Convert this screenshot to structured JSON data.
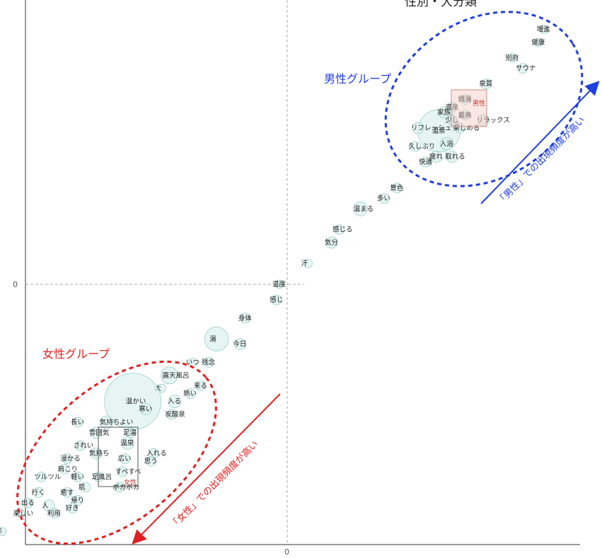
{
  "chart_data": {
    "type": "scatter",
    "title": "性別・大分類",
    "xlabel": "",
    "ylabel": "",
    "x_zero_label": "0",
    "y_zero_label": "0",
    "groups": {
      "male": {
        "label": "男性グループ",
        "color": "#1f3fe0",
        "arrow_label": "「男性」での出現頻度が高い"
      },
      "female": {
        "label": "女性グループ",
        "color": "#e02020",
        "arrow_label": "「女性」での出現頻度が高い"
      }
    },
    "categories_boxes": {
      "male": "男性",
      "female": "女性"
    },
    "points": [
      {
        "label": "増進",
        "x": 0.98,
        "y": 0.98,
        "size": 6
      },
      {
        "label": "健康",
        "x": 0.96,
        "y": 0.93,
        "size": 6
      },
      {
        "label": "別府",
        "x": 0.86,
        "y": 0.87,
        "size": 6
      },
      {
        "label": "サウナ",
        "x": 0.9,
        "y": 0.83,
        "size": 7
      },
      {
        "label": "泉質",
        "x": 0.76,
        "y": 0.77,
        "size": 7
      },
      {
        "label": "銭湯",
        "x": 0.68,
        "y": 0.71,
        "size": 7
      },
      {
        "label": "最高",
        "x": 0.68,
        "y": 0.65,
        "size": 7
      },
      {
        "label": "温泉",
        "x": 0.58,
        "y": 0.59,
        "size": 30
      },
      {
        "label": "家族",
        "x": 0.6,
        "y": 0.66,
        "size": 8
      },
      {
        "label": "リラックス",
        "x": 0.75,
        "y": 0.63,
        "size": 8
      },
      {
        "label": "楽しめる",
        "x": 0.66,
        "y": 0.6,
        "size": 7
      },
      {
        "label": "リフレッシュ",
        "x": 0.5,
        "y": 0.6,
        "size": 8
      },
      {
        "label": "久しぶり",
        "x": 0.49,
        "y": 0.53,
        "size": 7
      },
      {
        "label": "入浴",
        "x": 0.61,
        "y": 0.54,
        "size": 9
      },
      {
        "label": "快適",
        "x": 0.53,
        "y": 0.47,
        "size": 7
      },
      {
        "label": "疲れ",
        "x": 0.57,
        "y": 0.49,
        "size": 8
      },
      {
        "label": "取れる",
        "x": 0.63,
        "y": 0.49,
        "size": 8
      },
      {
        "label": "少し",
        "x": 0.63,
        "y": 0.63,
        "size": 7
      },
      {
        "label": "温泉",
        "x": 0.63,
        "y": 0.68,
        "size": 7
      },
      {
        "label": "景色",
        "x": 0.42,
        "y": 0.37,
        "size": 7
      },
      {
        "label": "多い",
        "x": 0.37,
        "y": 0.33,
        "size": 7
      },
      {
        "label": "温まる",
        "x": 0.28,
        "y": 0.29,
        "size": 10
      },
      {
        "label": "感じる",
        "x": 0.2,
        "y": 0.21,
        "size": 7
      },
      {
        "label": "気分",
        "x": 0.17,
        "y": 0.16,
        "size": 8
      },
      {
        "label": "汗",
        "x": 0.08,
        "y": 0.08,
        "size": 6
      },
      {
        "label": "温度",
        "x": -0.03,
        "y": 0.0,
        "size": 6
      },
      {
        "label": "感じ",
        "x": -0.04,
        "y": -0.06,
        "size": 7
      },
      {
        "label": "身体",
        "x": -0.16,
        "y": -0.13,
        "size": 7
      },
      {
        "label": "湯",
        "x": -0.27,
        "y": -0.21,
        "size": 17
      },
      {
        "label": "今日",
        "x": -0.18,
        "y": -0.23,
        "size": 8
      },
      {
        "label": "いつ",
        "x": -0.36,
        "y": -0.3,
        "size": 6
      },
      {
        "label": "残念",
        "x": -0.3,
        "y": -0.3,
        "size": 7
      },
      {
        "label": "露天風呂",
        "x": -0.45,
        "y": -0.35,
        "size": 12
      },
      {
        "label": "来る",
        "x": -0.33,
        "y": -0.39,
        "size": 7
      },
      {
        "label": "熱い",
        "x": -0.37,
        "y": -0.42,
        "size": 7
      },
      {
        "label": "大",
        "x": -0.48,
        "y": -0.4,
        "size": 6
      },
      {
        "label": "温かい",
        "x": -0.59,
        "y": -0.45,
        "size": 40
      },
      {
        "label": "入る",
        "x": -0.43,
        "y": -0.45,
        "size": 9
      },
      {
        "label": "寒い",
        "x": -0.54,
        "y": -0.48,
        "size": 8
      },
      {
        "label": "炭酸泉",
        "x": -0.44,
        "y": -0.5,
        "size": 7
      },
      {
        "label": "長い",
        "x": -0.8,
        "y": -0.53,
        "size": 7
      },
      {
        "label": "気持ちよい",
        "x": -0.69,
        "y": -0.53,
        "size": 9
      },
      {
        "label": "雰囲気",
        "x": -0.73,
        "y": -0.57,
        "size": 8
      },
      {
        "label": "足湯",
        "x": -0.6,
        "y": -0.57,
        "size": 7
      },
      {
        "label": "温泉",
        "x": -0.61,
        "y": -0.61,
        "size": 9
      },
      {
        "label": "されい",
        "x": -0.79,
        "y": -0.62,
        "size": 7
      },
      {
        "label": "入れる",
        "x": -0.51,
        "y": -0.65,
        "size": 7
      },
      {
        "label": "気持ち",
        "x": -0.73,
        "y": -0.65,
        "size": 8
      },
      {
        "label": "広い",
        "x": -0.62,
        "y": -0.67,
        "size": 7
      },
      {
        "label": "思う",
        "x": -0.52,
        "y": -0.68,
        "size": 7
      },
      {
        "label": "浸かる",
        "x": -0.84,
        "y": -0.67,
        "size": 7
      },
      {
        "label": "肩こり",
        "x": -0.85,
        "y": -0.71,
        "size": 7
      },
      {
        "label": "すべすべ",
        "x": -0.63,
        "y": -0.72,
        "size": 7
      },
      {
        "label": "ツルツル",
        "x": -0.94,
        "y": -0.74,
        "size": 7
      },
      {
        "label": "軽い",
        "x": -0.8,
        "y": -0.74,
        "size": 7
      },
      {
        "label": "足風呂",
        "x": -0.72,
        "y": -0.74,
        "size": 7
      },
      {
        "label": "肌",
        "x": -0.77,
        "y": -0.78,
        "size": 7
      },
      {
        "label": "ポカポカ",
        "x": -0.64,
        "y": -0.78,
        "size": 7
      },
      {
        "label": "行く",
        "x": -0.95,
        "y": -0.8,
        "size": 7
      },
      {
        "label": "癒す",
        "x": -0.84,
        "y": -0.8,
        "size": 7
      },
      {
        "label": "出る",
        "x": -0.99,
        "y": -0.84,
        "size": 7
      },
      {
        "label": "人",
        "x": -0.91,
        "y": -0.85,
        "size": 8
      },
      {
        "label": "帰り",
        "x": -0.8,
        "y": -0.83,
        "size": 7
      },
      {
        "label": "好き",
        "x": -0.82,
        "y": -0.86,
        "size": 7
      },
      {
        "label": "楽しい",
        "x": -1.02,
        "y": -0.88,
        "size": 6
      },
      {
        "label": "利用",
        "x": -0.89,
        "y": -0.88,
        "size": 7
      },
      {
        "label": "脚",
        "x": -1.09,
        "y": -0.95,
        "size": 6
      }
    ]
  }
}
